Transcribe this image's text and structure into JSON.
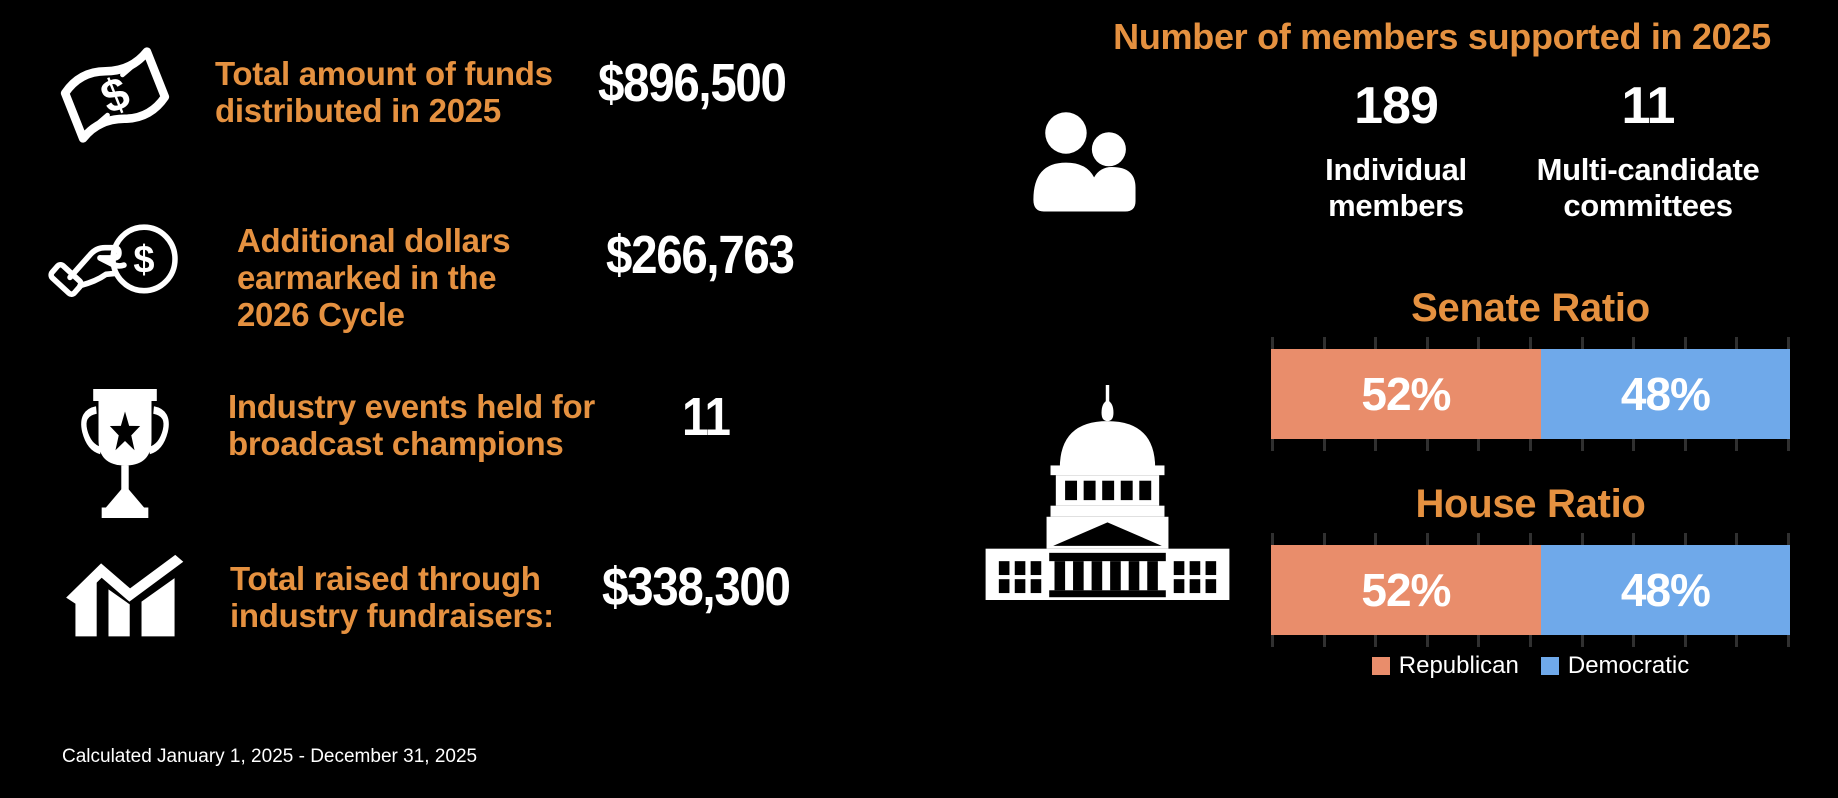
{
  "colors": {
    "background": "#000000",
    "accent_orange": "#E59140",
    "republican": "#E98D6B",
    "democratic": "#6FA9EA",
    "text_white": "#FFFFFF",
    "tick_gray": "#303030"
  },
  "left_stats": [
    {
      "icon": "money-bill-icon",
      "label_lines": [
        "Total amount of funds",
        "distributed in 2025"
      ],
      "value": "$896,500"
    },
    {
      "icon": "hand-coin-icon",
      "label_lines": [
        "Additional dollars",
        "earmarked in  the",
        "2026 Cycle"
      ],
      "value": "$266,763"
    },
    {
      "icon": "trophy-icon",
      "label_lines": [
        "Industry events held for",
        "broadcast champions"
      ],
      "value": "11"
    },
    {
      "icon": "chart-up-icon",
      "label_lines": [
        "Total raised through",
        "industry fundraisers:"
      ],
      "value": "$338,300"
    }
  ],
  "members_section": {
    "title": "Number of members supported in 2025",
    "icon": "people-icon",
    "stats": [
      {
        "value": "189",
        "label_lines": [
          "Individual",
          "members"
        ]
      },
      {
        "value": "11",
        "label_lines": [
          "Multi-candidate",
          "committees"
        ]
      }
    ]
  },
  "ratios_section": {
    "icon": "capitol-icon",
    "legend": [
      {
        "label": "Republican",
        "color": "#E98D6B"
      },
      {
        "label": "Democratic",
        "color": "#6FA9EA"
      }
    ]
  },
  "chart_data": [
    {
      "type": "bar",
      "orientation": "horizontal-stacked-percent",
      "title": "Senate Ratio",
      "categories": [
        "Republican",
        "Democratic"
      ],
      "values": [
        52,
        48
      ],
      "labels": [
        "52%",
        "48%"
      ],
      "colors": [
        "#E98D6B",
        "#6FA9EA"
      ],
      "xlim": [
        0,
        100
      ],
      "axis_ticks": 11,
      "legend_position": "below House chart"
    },
    {
      "type": "bar",
      "orientation": "horizontal-stacked-percent",
      "title": "House Ratio",
      "categories": [
        "Republican",
        "Democratic"
      ],
      "values": [
        52,
        48
      ],
      "labels": [
        "52%",
        "48%"
      ],
      "colors": [
        "#E98D6B",
        "#6FA9EA"
      ],
      "xlim": [
        0,
        100
      ],
      "axis_ticks": 11,
      "legend_position": "below House chart"
    }
  ],
  "footer": {
    "note": "Calculated January 1, 2025 - December 31, 2025"
  }
}
